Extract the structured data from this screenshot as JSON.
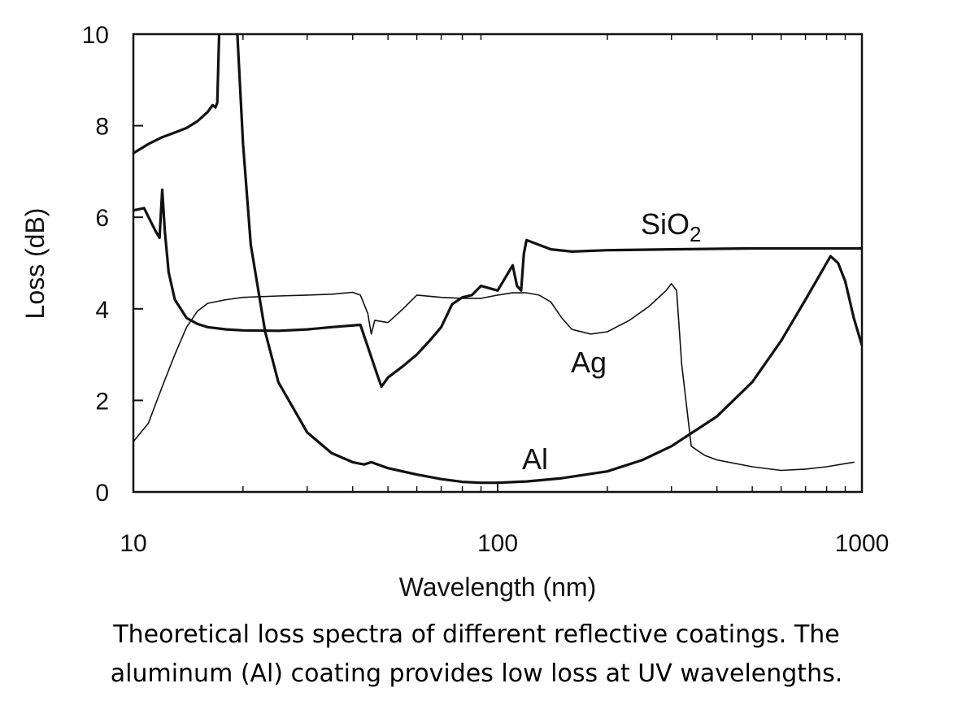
{
  "chart_data": {
    "type": "line",
    "xlabel": "Wavelength (nm)",
    "ylabel": "Loss (dB)",
    "xscale": "log",
    "xlim": [
      10,
      1000
    ],
    "ylim": [
      0,
      10
    ],
    "x_ticks": [
      10,
      100,
      1000
    ],
    "x_tick_labels": [
      "10",
      "100",
      "1000"
    ],
    "y_ticks": [
      0,
      2,
      4,
      6,
      8,
      10
    ],
    "y_tick_labels": [
      "0",
      "2",
      "4",
      "6",
      "8",
      "10"
    ],
    "grid": false,
    "legend": "none",
    "series": [
      {
        "name": "SiO₂",
        "label_parts": [
          "SiO",
          "2"
        ],
        "x": [
          10,
          10.7,
          11.5,
          11.8,
          12.0,
          12.2,
          12.5,
          13.0,
          14.0,
          15.0,
          16.0,
          18.0,
          20.0,
          25.0,
          30.0,
          35.0,
          42.0,
          47.0,
          48.0,
          50.0,
          55.0,
          60.0,
          65.0,
          70.0,
          75.0,
          80.0,
          85.0,
          90.0,
          100.0,
          110.0,
          113.0,
          116.0,
          118.0,
          120.0,
          125.0,
          140.0,
          160.0,
          200.0,
          300.0,
          500.0,
          1000.0
        ],
        "y": [
          6.15,
          6.2,
          5.7,
          5.55,
          6.6,
          5.7,
          4.8,
          4.2,
          3.8,
          3.67,
          3.6,
          3.55,
          3.53,
          3.52,
          3.55,
          3.6,
          3.65,
          2.5,
          2.3,
          2.5,
          2.75,
          3.0,
          3.3,
          3.6,
          4.1,
          4.25,
          4.3,
          4.5,
          4.4,
          4.95,
          4.5,
          4.4,
          5.2,
          5.5,
          5.45,
          5.3,
          5.25,
          5.28,
          5.3,
          5.32,
          5.32
        ]
      },
      {
        "name": "Ag",
        "x": [
          10,
          11.0,
          12.0,
          13.0,
          14.0,
          15.0,
          16.0,
          18.0,
          20.0,
          25.0,
          30.0,
          35.0,
          40.0,
          42.0,
          44.0,
          45.0,
          46.0,
          50.0,
          55.0,
          60.0,
          70.0,
          80.0,
          90.0,
          100.0,
          110.0,
          120.0,
          130.0,
          140.0,
          150.0,
          160.0,
          180.0,
          200.0,
          230.0,
          260.0,
          290.0,
          300.0,
          310.0,
          320.0,
          340.0,
          370.0,
          400.0,
          500.0,
          600.0,
          700.0,
          800.0,
          950.0
        ],
        "y": [
          1.1,
          1.5,
          2.3,
          3.0,
          3.6,
          3.95,
          4.12,
          4.2,
          4.25,
          4.28,
          4.3,
          4.32,
          4.36,
          4.3,
          3.9,
          3.45,
          3.75,
          3.7,
          4.0,
          4.3,
          4.25,
          4.23,
          4.23,
          4.3,
          4.35,
          4.35,
          4.3,
          4.15,
          3.8,
          3.55,
          3.45,
          3.5,
          3.75,
          4.05,
          4.4,
          4.55,
          4.4,
          2.8,
          1.0,
          0.8,
          0.7,
          0.55,
          0.47,
          0.5,
          0.55,
          0.65
        ]
      },
      {
        "name": "Al",
        "x": [
          10,
          11.0,
          12.0,
          13.0,
          14.0,
          15.0,
          16.0,
          16.5,
          16.8,
          17.0,
          17.2,
          17.5,
          18.0,
          19.0,
          19.3,
          20.0,
          21.0,
          23.0,
          25.0,
          30.0,
          35.0,
          40.0,
          43.0,
          45.0,
          50.0,
          60.0,
          70.0,
          80.0,
          90.0,
          100.0,
          120.0,
          150.0,
          200.0,
          250.0,
          300.0,
          400.0,
          500.0,
          600.0,
          700.0,
          780.0,
          820.0,
          860.0,
          900.0,
          950.0,
          1000.0
        ],
        "y": [
          7.4,
          7.6,
          7.75,
          7.85,
          7.95,
          8.1,
          8.3,
          8.45,
          8.4,
          8.5,
          10.0,
          10.5,
          11.0,
          11.0,
          10.0,
          7.6,
          5.4,
          3.5,
          2.4,
          1.3,
          0.85,
          0.65,
          0.6,
          0.65,
          0.52,
          0.38,
          0.28,
          0.22,
          0.2,
          0.2,
          0.23,
          0.3,
          0.45,
          0.7,
          1.0,
          1.65,
          2.4,
          3.3,
          4.2,
          4.85,
          5.15,
          5.0,
          4.6,
          3.8,
          3.2
        ]
      }
    ]
  },
  "caption": {
    "line1": "Theoretical loss spectra of different reflective coatings. The",
    "line2": "aluminum (Al) coating provides low loss at UV wavelengths."
  }
}
